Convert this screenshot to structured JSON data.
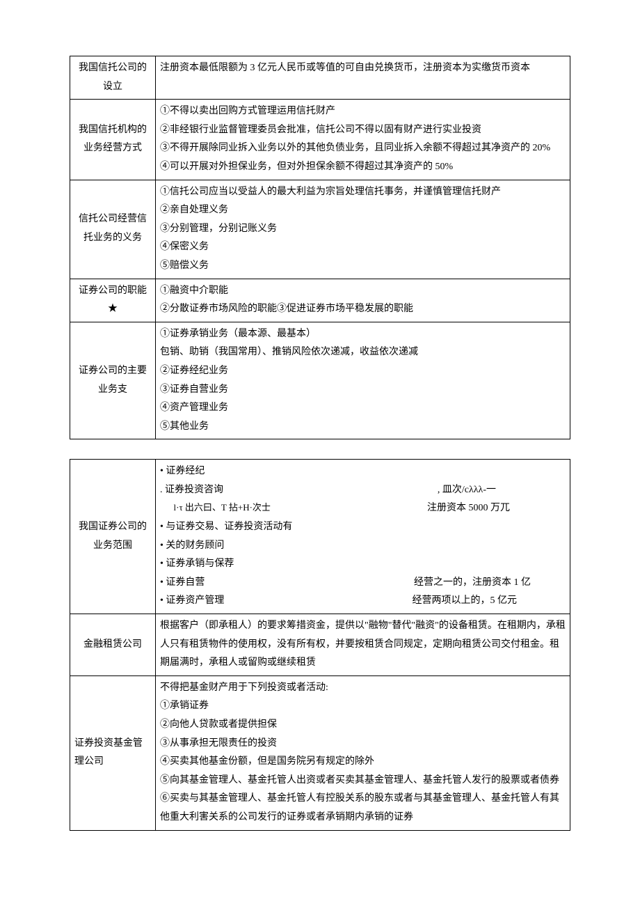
{
  "table1": {
    "rows": [
      {
        "label": "我国信托公司的设立",
        "lines": [
          "注册资本最低限额为 3 亿元人民币或等值的可自由兑换货币，注册资本为实缴货币资本"
        ]
      },
      {
        "label": "我国信托机构的业务经营方式",
        "lines": [
          "①不得以卖出回购方式管理运用信托财产",
          "②非经银行业监督管理委员会批准，信托公司不得以固有财产进行实业投资",
          "③不得开展除同业拆入业务以外的其他负债业务，且同业拆入余额不得超过其净资产的 20%",
          "④可以开展对外担保业务，但对外担保余额不得超过其净资产的 50%"
        ]
      },
      {
        "label": "信托公司经营信托业务的义务",
        "lines": [
          "①信托公司应当以受益人的最大利益为宗旨处理信托事务，并谨慎管理信托财产",
          "②亲自处理义务",
          "③分别管理，分别记账义务",
          "④保密义务",
          "⑤赔偿义务"
        ]
      },
      {
        "label": "证券公司的职能★",
        "lines": [
          "①融资中介职能",
          "②分散证券市场风险的职能③促进证券市场平稳发展的职能",
          ""
        ]
      },
      {
        "label": "证券公司的主要业务支",
        "lines": [
          "①证券承销业务（最本源、最基本）",
          "包销、助销（我国常用）、推销风险依次递减，收益依次递减",
          "②证券经纪业务",
          "③证券自营业务",
          "④资产管理业务",
          "⑤其他业务"
        ]
      }
    ]
  },
  "table2": {
    "rows": [
      {
        "label": "我国证券公司的业务范围",
        "type": "mixed",
        "left": [
          "• 证券经纪",
          ". 证券投资咨询",
          "• 与证券交易、证券投资活动有",
          "• 关的财务顾问",
          "• 证券承销与保荐",
          "• 证券自营",
          "• 证券资产管理"
        ],
        "subline": "l·τ 出六曰、T 拈+H·次士",
        "right_top1": ", 皿次/cλλλ-一",
        "right_top2": "注册资本 5000 万兀",
        "right_mid": "经营之一的，注册资本 1 亿",
        "right_bot": "经营两项以上的，5 亿元"
      },
      {
        "label": "金融租赁公司",
        "lines": [
          "根据客户（即承租人）的要求筹措资金，提供以\"融物\"替代\"融资\"的设备租赁。在租期内，承租人只有租赁物件的使用权，没有所有权，并要按租赁合同规定，定期向租赁公司交付租金。租期届满时，承租人或留购或继续租赁"
        ]
      },
      {
        "label": "证券投资基金管理公司",
        "lines": [
          "不得把基金财产用于下列投资或者活动:",
          "①承销证券",
          "②向他人贷款或者提供担保",
          "③从事承担无限责任的投资",
          "④买卖其他基金份额，但是国务院另有规定的除外",
          "⑤向其基金管理人、基金托管人出资或者买卖其基金管理人、基金托管人发行的股票或者债券",
          "⑥买卖与其基金管理人、基金托管人有控股关系的股东或者与其基金管理人、基金托管人有其他重大利害关系的公司发行的证券或者承销期内承销的证券"
        ]
      }
    ]
  }
}
